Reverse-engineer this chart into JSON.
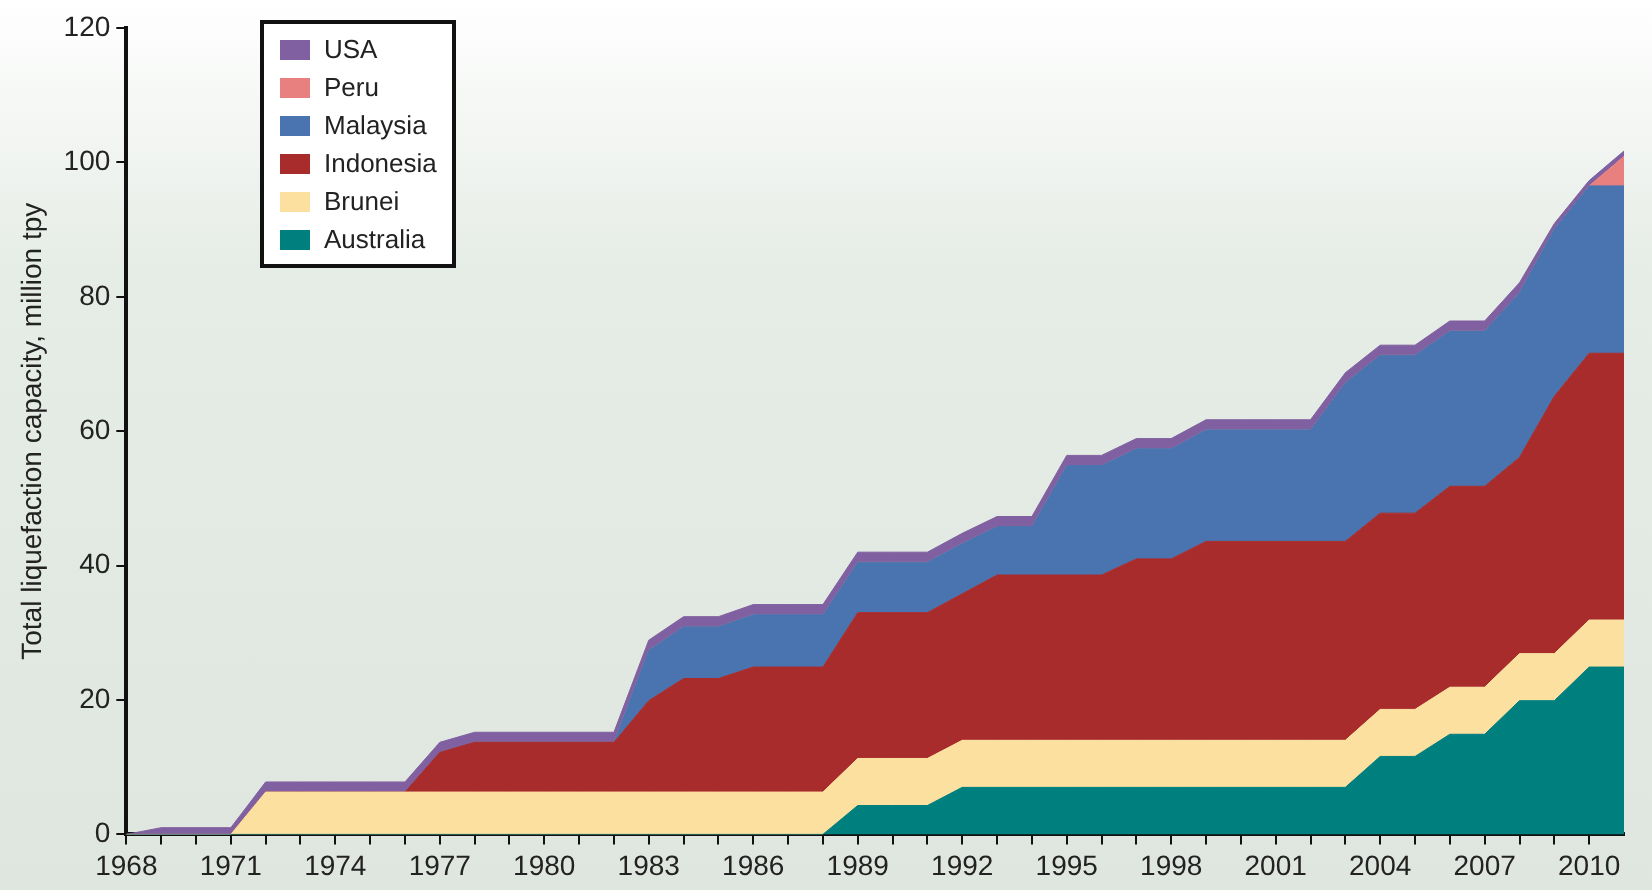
{
  "chart_data": {
    "type": "area",
    "ylabel": "Total liquefaction capacity, million tpy",
    "stacked": true,
    "grid": false,
    "legend": "top left",
    "x": [
      1968,
      1969,
      1970,
      1971,
      1972,
      1973,
      1974,
      1975,
      1976,
      1977,
      1978,
      1979,
      1980,
      1981,
      1982,
      1983,
      1984,
      1985,
      1986,
      1987,
      1988,
      1989,
      1990,
      1991,
      1992,
      1993,
      1994,
      1995,
      1996,
      1997,
      1998,
      1999,
      2000,
      2001,
      2002,
      2003,
      2004,
      2005,
      2006,
      2007,
      2008,
      2009,
      2010,
      2011
    ],
    "xlim": [
      1968,
      2011
    ],
    "xticks": [
      1968,
      {
        "value": 1969,
        "label": null
      },
      {
        "value": 1970,
        "label": null
      },
      1971,
      {
        "value": 1972,
        "label": null
      },
      {
        "value": 1973,
        "label": null
      },
      1974,
      {
        "value": 1975,
        "label": null
      },
      {
        "value": 1976,
        "label": null
      },
      1977,
      {
        "value": 1978,
        "label": null
      },
      {
        "value": 1979,
        "label": null
      },
      1980,
      {
        "value": 1981,
        "label": null
      },
      {
        "value": 1982,
        "label": null
      },
      1983,
      {
        "value": 1984,
        "label": null
      },
      {
        "value": 1985,
        "label": null
      },
      1986,
      {
        "value": 1987,
        "label": null
      },
      {
        "value": 1988,
        "label": null
      },
      1989,
      {
        "value": 1990,
        "label": null
      },
      {
        "value": 1991,
        "label": null
      },
      1992,
      {
        "value": 1993,
        "label": null
      },
      {
        "value": 1994,
        "label": null
      },
      1995,
      {
        "value": 1996,
        "label": null
      },
      {
        "value": 1997,
        "label": null
      },
      1998,
      {
        "value": 1999,
        "label": null
      },
      {
        "value": 2000,
        "label": null
      },
      2001,
      {
        "value": 2002,
        "label": null
      },
      {
        "value": 2003,
        "label": null
      },
      2004,
      {
        "value": 2005,
        "label": null
      },
      {
        "value": 2006,
        "label": null
      },
      2007,
      {
        "value": 2008,
        "label": null
      },
      {
        "value": 2009,
        "label": null
      },
      2010
    ],
    "ylim": [
      0,
      120
    ],
    "yticks": [
      0,
      20,
      40,
      60,
      80,
      100,
      120
    ],
    "series": [
      {
        "name": "Australia",
        "color": "#007f7f",
        "values": [
          0,
          0,
          0,
          0,
          0,
          0,
          0,
          0,
          0,
          0,
          0,
          0,
          0,
          0,
          0,
          0,
          0,
          0,
          0,
          0,
          0,
          4.3,
          4.3,
          4.3,
          7,
          7,
          7,
          7,
          7,
          7,
          7,
          7,
          7,
          7,
          7,
          7,
          11.6,
          11.6,
          14.9,
          14.9,
          19.9,
          19.9,
          24.9,
          24.9
        ]
      },
      {
        "name": "Brunei",
        "color": "#fbe0a0",
        "values": [
          0,
          0,
          0,
          0,
          6.3,
          6.3,
          6.3,
          6.3,
          6.3,
          6.3,
          6.3,
          6.3,
          6.3,
          6.3,
          6.3,
          6.3,
          6.3,
          6.3,
          6.3,
          6.3,
          6.3,
          7,
          7,
          7,
          7,
          7,
          7,
          7,
          7,
          7,
          7,
          7,
          7,
          7,
          7,
          7,
          7,
          7,
          7,
          7,
          7,
          7,
          7,
          7
        ]
      },
      {
        "name": "Indonesia",
        "color": "#a82c2c",
        "values": [
          0,
          0,
          0,
          0,
          0,
          0,
          0,
          0,
          0,
          5.9,
          7.4,
          7.4,
          7.4,
          7.4,
          7.4,
          13.6,
          16.9,
          16.9,
          18.6,
          18.6,
          18.6,
          21.7,
          21.7,
          21.7,
          21.8,
          24.6,
          24.6,
          24.6,
          24.6,
          27,
          27,
          29.6,
          29.6,
          29.6,
          29.6,
          29.6,
          29.2,
          29.2,
          29.9,
          29.9,
          29.2,
          38.3,
          39.7,
          39.7
        ]
      },
      {
        "name": "Malaysia",
        "color": "#4a74b0",
        "values": [
          0,
          0,
          0,
          0,
          0,
          0,
          0,
          0,
          0,
          0,
          0,
          0,
          0,
          0,
          0,
          7.5,
          7.7,
          7.7,
          7.8,
          7.8,
          7.8,
          7.5,
          7.5,
          7.5,
          7.5,
          7.2,
          7.2,
          16.3,
          16.3,
          16.4,
          16.4,
          16.6,
          16.6,
          16.6,
          16.6,
          23.6,
          23.5,
          23.5,
          23.1,
          23.1,
          24.5,
          24.9,
          24.9,
          24.9
        ]
      },
      {
        "name": "Peru",
        "color": "#e88080",
        "values": [
          0,
          0,
          0,
          0,
          0,
          0,
          0,
          0,
          0,
          0,
          0,
          0,
          0,
          0,
          0,
          0,
          0,
          0,
          0,
          0,
          0,
          0,
          0,
          0,
          0,
          0,
          0,
          0,
          0,
          0,
          0,
          0,
          0,
          0,
          0,
          0,
          0,
          0,
          0,
          0,
          0,
          0,
          0,
          4.4
        ]
      },
      {
        "name": "USA",
        "color": "#8060a0",
        "values": [
          0,
          1,
          1,
          1,
          1.5,
          1.5,
          1.5,
          1.5,
          1.5,
          1.5,
          1.5,
          1.5,
          1.5,
          1.5,
          1.5,
          1.5,
          1.5,
          1.5,
          1.5,
          1.5,
          1.5,
          1.5,
          1.5,
          1.5,
          1.5,
          1.5,
          1.5,
          1.5,
          1.5,
          1.5,
          1.5,
          1.5,
          1.5,
          1.5,
          1.5,
          1.5,
          1.5,
          1.5,
          1.5,
          1.5,
          1.5,
          0.8,
          0.8,
          0.8
        ]
      }
    ]
  }
}
